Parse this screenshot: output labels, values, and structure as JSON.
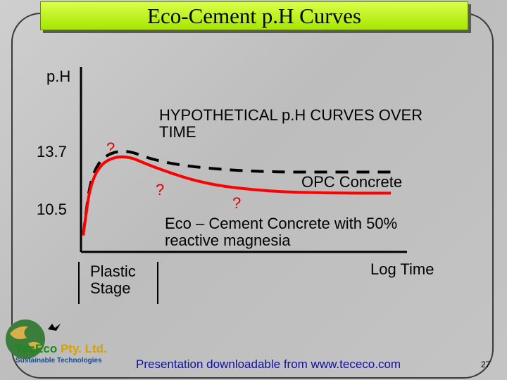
{
  "title": "Eco-Cement p.H Curves",
  "chart_data": {
    "type": "line",
    "title": "HYPOTHETICAL p.H CURVES OVER TIME",
    "ylabel": "p.H",
    "xlabel": "Log Time",
    "yticks": [
      "13.7",
      "10.5"
    ],
    "x_scale": "log",
    "series": [
      {
        "name": "OPC Concrete",
        "style": "dashed",
        "color": "#000000",
        "points": [
          [
            0.0,
            9.0
          ],
          [
            0.15,
            13.0
          ],
          [
            0.6,
            14.0
          ],
          [
            1.2,
            13.2
          ],
          [
            2.0,
            12.8
          ],
          [
            3.0,
            12.6
          ],
          [
            4.0,
            12.6
          ],
          [
            5.0,
            12.6
          ]
        ]
      },
      {
        "name": "Eco – Cement Concrete with 50% reactive magnesia",
        "style": "solid",
        "color": "#ff0000",
        "points": [
          [
            0.0,
            9.0
          ],
          [
            0.15,
            12.7
          ],
          [
            0.6,
            13.7
          ],
          [
            1.2,
            12.8
          ],
          [
            2.0,
            11.9
          ],
          [
            3.0,
            11.5
          ],
          [
            4.0,
            11.4
          ],
          [
            5.0,
            11.4
          ]
        ]
      }
    ],
    "annotations": [
      "?",
      "?",
      "?"
    ],
    "region_label": "Plastic Stage"
  },
  "footer": "Presentation downloadable from www.tececo.com",
  "page_number": "27",
  "logo": {
    "line1": "TecEco",
    "line2": "Pty. Ltd.",
    "tagline": "Sustainable Technologies"
  }
}
